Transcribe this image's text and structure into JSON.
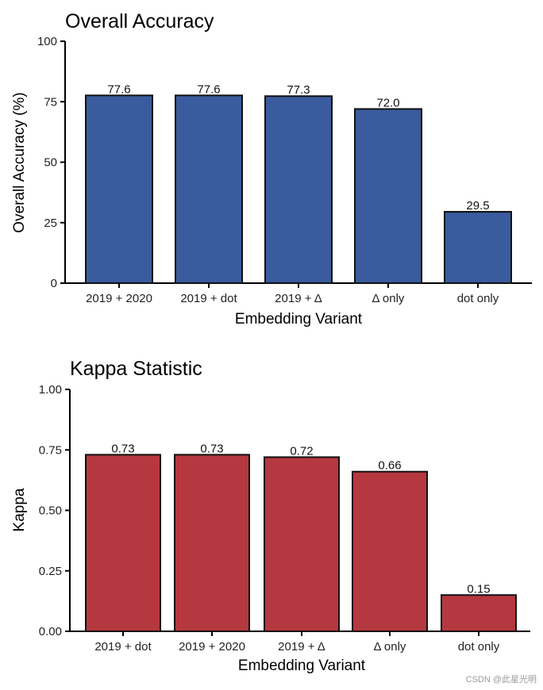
{
  "chart_data": [
    {
      "type": "bar",
      "title": "Overall Accuracy",
      "xlabel": "Embedding Variant",
      "ylabel": "Overall Accuracy (%)",
      "categories": [
        "2019 + 2020",
        "2019 + dot",
        "2019 + Δ",
        "Δ only",
        "dot only"
      ],
      "values": [
        77.6,
        77.6,
        77.3,
        72.0,
        29.5
      ],
      "value_labels": [
        "77.6",
        "77.6",
        "77.3",
        "72.0",
        "29.5"
      ],
      "ylim": [
        0,
        100
      ],
      "yticks": [
        0,
        25,
        50,
        75,
        100
      ],
      "ytick_labels": [
        "0",
        "25",
        "50",
        "75",
        "100"
      ],
      "bar_color": "#3a5b9d",
      "grid": false,
      "legend": "none"
    },
    {
      "type": "bar",
      "title": "Kappa Statistic",
      "xlabel": "Embedding Variant",
      "ylabel": "Kappa",
      "categories": [
        "2019 + dot",
        "2019 + 2020",
        "2019 + Δ",
        "Δ only",
        "dot only"
      ],
      "values": [
        0.73,
        0.73,
        0.72,
        0.66,
        0.15
      ],
      "value_labels": [
        "0.73",
        "0.73",
        "0.72",
        "0.66",
        "0.15"
      ],
      "ylim": [
        0,
        1
      ],
      "yticks": [
        0,
        0.25,
        0.5,
        0.75,
        1.0
      ],
      "ytick_labels": [
        "0.00",
        "0.25",
        "0.50",
        "0.75",
        "1.00"
      ],
      "bar_color": "#b53840",
      "grid": false,
      "legend": "none"
    }
  ],
  "watermark": "CSDN @此星光明"
}
